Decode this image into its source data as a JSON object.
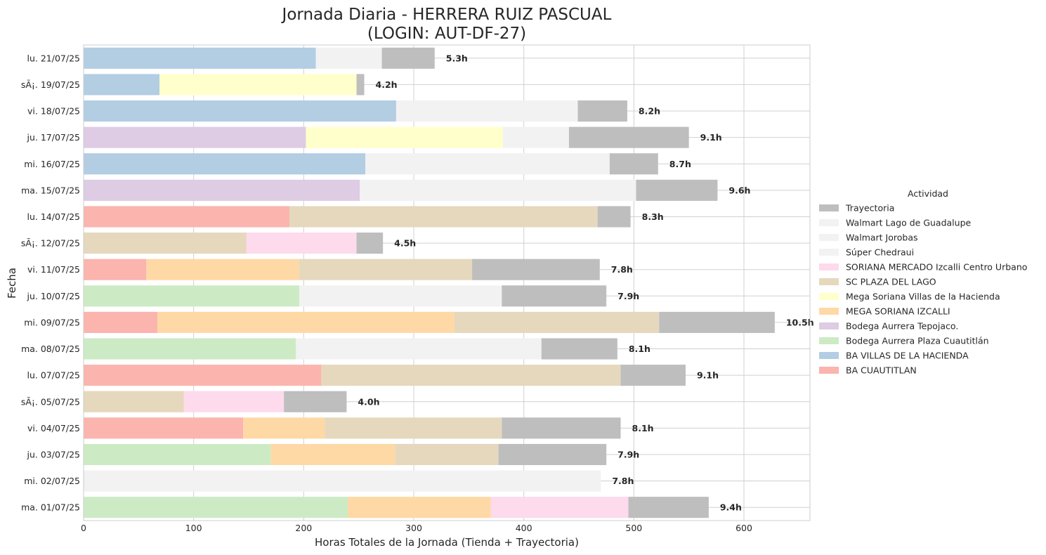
{
  "chart_data": {
    "type": "bar",
    "orientation": "horizontal",
    "stacked": true,
    "title_line1": "Jornada Diaria - HERRERA RUIZ PASCUAL",
    "title_line2": "(LOGIN: AUT-DF-27)",
    "xlabel": "Horas Totales de la Jornada (Tienda + Trayectoria)",
    "ylabel": "Fecha",
    "xlim": [
      0,
      660
    ],
    "xticks": [
      0,
      100,
      200,
      300,
      400,
      500,
      600
    ],
    "grid": true,
    "legend_title": "Actividad",
    "legend_position": "center-right",
    "colors": {
      "Trayectoria": "#bebebe",
      "Walmart Lago de Guadalupe": "#f2f2f2",
      "Walmart Jorobas": "#f2f2f2",
      "Súper Chedraui": "#f2f2f2",
      "SORIANA MERCADO Izcalli Centro Urbano": "#fddaec",
      "SC PLAZA DEL LAGO": "#e5d8bd",
      "Mega Soriana Villas de la Hacienda": "#ffffcc",
      "MEGA SORIANA IZCALLI": "#fed9a6",
      "Bodega Aurrera Tepojaco.": "#decbe4",
      "Bodega Aurrera Plaza Cuautitlán": "#ccebc5",
      "BA VILLAS DE LA HACIENDA": "#b3cde3",
      "BA CUAUTITLAN": "#fbb4ae"
    },
    "legend_entries": [
      "Trayectoria",
      "Walmart Lago de Guadalupe",
      "Walmart Jorobas",
      "Súper Chedraui",
      "SORIANA MERCADO Izcalli Centro Urbano",
      "SC PLAZA DEL LAGO",
      "Mega Soriana Villas de la Hacienda",
      "MEGA SORIANA IZCALLI",
      "Bodega Aurrera Tepojaco.",
      "Bodega Aurrera Plaza Cuautitlán",
      "BA VILLAS DE LA HACIENDA",
      "BA CUAUTITLAN"
    ],
    "rows": [
      {
        "date": "lu. 21/07/25",
        "total_label": "5.3h",
        "segments": [
          {
            "series": "BA VILLAS DE LA HACIENDA",
            "value": 211
          },
          {
            "series": "Súper Chedraui",
            "value": 60
          },
          {
            "series": "Trayectoria",
            "value": 48
          }
        ]
      },
      {
        "date": "sÃ¡. 19/07/25",
        "total_label": "4.2h",
        "segments": [
          {
            "series": "BA VILLAS DE LA HACIENDA",
            "value": 69
          },
          {
            "series": "Mega Soriana Villas de la Hacienda",
            "value": 179
          },
          {
            "series": "Trayectoria",
            "value": 7
          }
        ]
      },
      {
        "date": "vi. 18/07/25",
        "total_label": "8.2h",
        "segments": [
          {
            "series": "BA VILLAS DE LA HACIENDA",
            "value": 284
          },
          {
            "series": "Súper Chedraui",
            "value": 165
          },
          {
            "series": "Trayectoria",
            "value": 45
          }
        ]
      },
      {
        "date": "ju. 17/07/25",
        "total_label": "9.1h",
        "segments": [
          {
            "series": "Bodega Aurrera Tepojaco.",
            "value": 202
          },
          {
            "series": "Mega Soriana Villas de la Hacienda",
            "value": 179
          },
          {
            "series": "Súper Chedraui",
            "value": 60
          },
          {
            "series": "Trayectoria",
            "value": 109
          }
        ]
      },
      {
        "date": "mi. 16/07/25",
        "total_label": "8.7h",
        "segments": [
          {
            "series": "BA VILLAS DE LA HACIENDA",
            "value": 256
          },
          {
            "series": "Walmart Jorobas",
            "value": 222
          },
          {
            "series": "Trayectoria",
            "value": 44
          }
        ]
      },
      {
        "date": "ma. 15/07/25",
        "total_label": "9.6h",
        "segments": [
          {
            "series": "Bodega Aurrera Tepojaco.",
            "value": 251
          },
          {
            "series": "Walmart Jorobas",
            "value": 251
          },
          {
            "series": "Trayectoria",
            "value": 74
          }
        ]
      },
      {
        "date": "lu. 14/07/25",
        "total_label": "8.3h",
        "segments": [
          {
            "series": "BA CUAUTITLAN",
            "value": 187
          },
          {
            "series": "SC PLAZA DEL LAGO",
            "value": 280
          },
          {
            "series": "Trayectoria",
            "value": 30
          }
        ]
      },
      {
        "date": "sÃ¡. 12/07/25",
        "total_label": "4.5h",
        "segments": [
          {
            "series": "SC PLAZA DEL LAGO",
            "value": 148
          },
          {
            "series": "SORIANA MERCADO Izcalli Centro Urbano",
            "value": 100
          },
          {
            "series": "Trayectoria",
            "value": 24
          }
        ]
      },
      {
        "date": "vi. 11/07/25",
        "total_label": "7.8h",
        "segments": [
          {
            "series": "BA CUAUTITLAN",
            "value": 57
          },
          {
            "series": "MEGA SORIANA IZCALLI",
            "value": 139
          },
          {
            "series": "SC PLAZA DEL LAGO",
            "value": 157
          },
          {
            "series": "Trayectoria",
            "value": 116
          }
        ]
      },
      {
        "date": "ju. 10/07/25",
        "total_label": "7.9h",
        "segments": [
          {
            "series": "Bodega Aurrera Plaza Cuautitlán",
            "value": 196
          },
          {
            "series": "Walmart Lago de Guadalupe",
            "value": 184
          },
          {
            "series": "Trayectoria",
            "value": 95
          }
        ]
      },
      {
        "date": "mi. 09/07/25",
        "total_label": "10.5h",
        "segments": [
          {
            "series": "BA CUAUTITLAN",
            "value": 67
          },
          {
            "series": "MEGA SORIANA IZCALLI",
            "value": 270
          },
          {
            "series": "SC PLAZA DEL LAGO",
            "value": 186
          },
          {
            "series": "Trayectoria",
            "value": 105
          }
        ]
      },
      {
        "date": "ma. 08/07/25",
        "total_label": "8.1h",
        "segments": [
          {
            "series": "Bodega Aurrera Plaza Cuautitlán",
            "value": 193
          },
          {
            "series": "Walmart Lago de Guadalupe",
            "value": 223
          },
          {
            "series": "Trayectoria",
            "value": 69
          }
        ]
      },
      {
        "date": "lu. 07/07/25",
        "total_label": "9.1h",
        "segments": [
          {
            "series": "BA CUAUTITLAN",
            "value": 216
          },
          {
            "series": "SC PLAZA DEL LAGO",
            "value": 272
          },
          {
            "series": "Trayectoria",
            "value": 59
          }
        ]
      },
      {
        "date": "sÃ¡. 05/07/25",
        "total_label": "4.0h",
        "segments": [
          {
            "series": "SC PLAZA DEL LAGO",
            "value": 91
          },
          {
            "series": "SORIANA MERCADO Izcalli Centro Urbano",
            "value": 91
          },
          {
            "series": "Trayectoria",
            "value": 57
          }
        ]
      },
      {
        "date": "vi. 04/07/25",
        "total_label": "8.1h",
        "segments": [
          {
            "series": "BA CUAUTITLAN",
            "value": 145
          },
          {
            "series": "MEGA SORIANA IZCALLI",
            "value": 74
          },
          {
            "series": "SC PLAZA DEL LAGO",
            "value": 161
          },
          {
            "series": "Trayectoria",
            "value": 108
          }
        ]
      },
      {
        "date": "ju. 03/07/25",
        "total_label": "7.9h",
        "segments": [
          {
            "series": "Bodega Aurrera Plaza Cuautitlán",
            "value": 170
          },
          {
            "series": "MEGA SORIANA IZCALLI",
            "value": 113
          },
          {
            "series": "SC PLAZA DEL LAGO",
            "value": 94
          },
          {
            "series": "Trayectoria",
            "value": 98
          }
        ]
      },
      {
        "date": "mi. 02/07/25",
        "total_label": "7.8h",
        "segments": [
          {
            "series": "Walmart Lago de Guadalupe",
            "value": 470
          }
        ]
      },
      {
        "date": "ma. 01/07/25",
        "total_label": "9.4h",
        "segments": [
          {
            "series": "Bodega Aurrera Plaza Cuautitlán",
            "value": 240
          },
          {
            "series": "MEGA SORIANA IZCALLI",
            "value": 130
          },
          {
            "series": "SORIANA MERCADO Izcalli Centro Urbano",
            "value": 125
          },
          {
            "series": "Trayectoria",
            "value": 73
          }
        ]
      }
    ]
  }
}
